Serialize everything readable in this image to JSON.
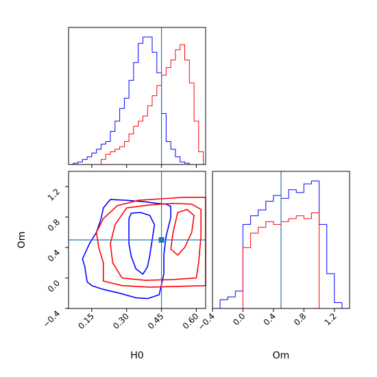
{
  "chart_data": {
    "type": "corner",
    "parameters": [
      "H0",
      "Om"
    ],
    "truth": {
      "H0": 0.45,
      "Om": 0.5,
      "color": "#1f77b4"
    },
    "series_colors": [
      "#0000ff",
      "#ff0000"
    ],
    "axes": {
      "H0": {
        "range": [
          0.05,
          0.64
        ],
        "ticks": [
          0.15,
          0.3,
          0.45,
          0.6
        ],
        "tick_labels": [
          "0.15",
          "0.30",
          "0.45",
          "0.60"
        ]
      },
      "Om": {
        "range": [
          -0.4,
          1.4
        ],
        "ticks": [
          -0.4,
          0.0,
          0.4,
          0.8,
          1.2
        ],
        "tick_labels": [
          "−0.4",
          "0.0",
          "0.4",
          "0.8",
          "1.2"
        ]
      }
    },
    "hist_H0": {
      "bin_edges": [
        0.07,
        0.09,
        0.11,
        0.13,
        0.15,
        0.17,
        0.19,
        0.21,
        0.23,
        0.25,
        0.27,
        0.29,
        0.31,
        0.33,
        0.35,
        0.37,
        0.39,
        0.41,
        0.43,
        0.45,
        0.47,
        0.49,
        0.51,
        0.53,
        0.55,
        0.57,
        0.59,
        0.61,
        0.63
      ],
      "series": [
        {
          "color": "#0000ff",
          "values": [
            1,
            2,
            4,
            6,
            9,
            12,
            16,
            18,
            26,
            34,
            44,
            52,
            66,
            80,
            95,
            100,
            100,
            88,
            72,
            40,
            18,
            12,
            6,
            2,
            1,
            0,
            0,
            0
          ]
        },
        {
          "color": "#ff0000",
          "values": [
            0,
            0,
            0,
            0,
            0,
            0,
            4,
            8,
            10,
            12,
            14,
            18,
            24,
            30,
            34,
            38,
            46,
            54,
            62,
            70,
            76,
            82,
            90,
            94,
            82,
            64,
            34,
            10
          ]
        }
      ]
    },
    "hist_Om": {
      "bin_edges": [
        -0.3,
        -0.2,
        -0.1,
        0.0,
        0.1,
        0.2,
        0.3,
        0.4,
        0.5,
        0.6,
        0.7,
        0.8,
        0.9,
        1.0,
        1.1,
        1.2,
        1.3
      ],
      "series": [
        {
          "color": "#0000ff",
          "values": [
            6,
            8,
            12,
            58,
            64,
            68,
            74,
            78,
            76,
            82,
            80,
            86,
            88,
            58,
            24,
            4
          ]
        },
        {
          "color": "#ff0000",
          "values": [
            0,
            0,
            0,
            42,
            52,
            56,
            60,
            58,
            60,
            62,
            64,
            62,
            66,
            0,
            0,
            0
          ]
        }
      ]
    },
    "contours_2d": [
      {
        "color": "#0000ff",
        "level": "outer",
        "points": [
          [
            0.23,
            1.03
          ],
          [
            0.3,
            1.02
          ],
          [
            0.38,
            1.0
          ],
          [
            0.43,
            0.98
          ],
          [
            0.47,
            0.97
          ],
          [
            0.49,
            0.94
          ],
          [
            0.49,
            0.8
          ],
          [
            0.47,
            0.55
          ],
          [
            0.46,
            0.3
          ],
          [
            0.46,
            0.05
          ],
          [
            0.44,
            -0.22
          ],
          [
            0.39,
            -0.27
          ],
          [
            0.34,
            -0.26
          ],
          [
            0.27,
            -0.2
          ],
          [
            0.2,
            -0.15
          ],
          [
            0.15,
            -0.1
          ],
          [
            0.13,
            -0.05
          ],
          [
            0.12,
            0.15
          ],
          [
            0.11,
            0.25
          ],
          [
            0.14,
            0.45
          ],
          [
            0.17,
            0.6
          ],
          [
            0.19,
            0.78
          ],
          [
            0.2,
            0.92
          ],
          [
            0.23,
            1.03
          ]
        ]
      },
      {
        "color": "#0000ff",
        "level": "inner",
        "points": [
          [
            0.32,
            0.85
          ],
          [
            0.36,
            0.86
          ],
          [
            0.4,
            0.82
          ],
          [
            0.42,
            0.7
          ],
          [
            0.41,
            0.5
          ],
          [
            0.4,
            0.3
          ],
          [
            0.39,
            0.15
          ],
          [
            0.37,
            0.05
          ],
          [
            0.34,
            0.12
          ],
          [
            0.32,
            0.28
          ],
          [
            0.31,
            0.45
          ],
          [
            0.31,
            0.62
          ],
          [
            0.31,
            0.78
          ],
          [
            0.32,
            0.85
          ]
        ]
      },
      {
        "color": "#ff0000",
        "level": "outer",
        "points": [
          [
            0.26,
            0.95
          ],
          [
            0.35,
            1.02
          ],
          [
            0.45,
            1.04
          ],
          [
            0.55,
            1.06
          ],
          [
            0.64,
            1.06
          ],
          [
            0.64,
            0.6
          ],
          [
            0.64,
            0.2
          ],
          [
            0.64,
            -0.1
          ],
          [
            0.52,
            -0.11
          ],
          [
            0.4,
            -0.12
          ],
          [
            0.28,
            -0.1
          ],
          [
            0.2,
            -0.04
          ],
          [
            0.2,
            0.2
          ],
          [
            0.18,
            0.4
          ],
          [
            0.17,
            0.6
          ],
          [
            0.2,
            0.78
          ],
          [
            0.26,
            0.95
          ]
        ]
      },
      {
        "color": "#ff0000",
        "level": "inner",
        "points": [
          [
            0.3,
            0.92
          ],
          [
            0.4,
            0.96
          ],
          [
            0.5,
            0.98
          ],
          [
            0.58,
            0.97
          ],
          [
            0.62,
            0.9
          ],
          [
            0.62,
            0.55
          ],
          [
            0.61,
            0.2
          ],
          [
            0.6,
            0.0
          ],
          [
            0.5,
            -0.02
          ],
          [
            0.38,
            -0.03
          ],
          [
            0.28,
            0.0
          ],
          [
            0.24,
            0.2
          ],
          [
            0.23,
            0.45
          ],
          [
            0.25,
            0.7
          ],
          [
            0.3,
            0.92
          ]
        ]
      },
      {
        "color": "#ff0000",
        "level": "core",
        "points": [
          [
            0.52,
            0.86
          ],
          [
            0.56,
            0.9
          ],
          [
            0.59,
            0.82
          ],
          [
            0.58,
            0.6
          ],
          [
            0.55,
            0.4
          ],
          [
            0.52,
            0.3
          ],
          [
            0.49,
            0.38
          ],
          [
            0.5,
            0.6
          ],
          [
            0.52,
            0.86
          ]
        ]
      }
    ]
  }
}
